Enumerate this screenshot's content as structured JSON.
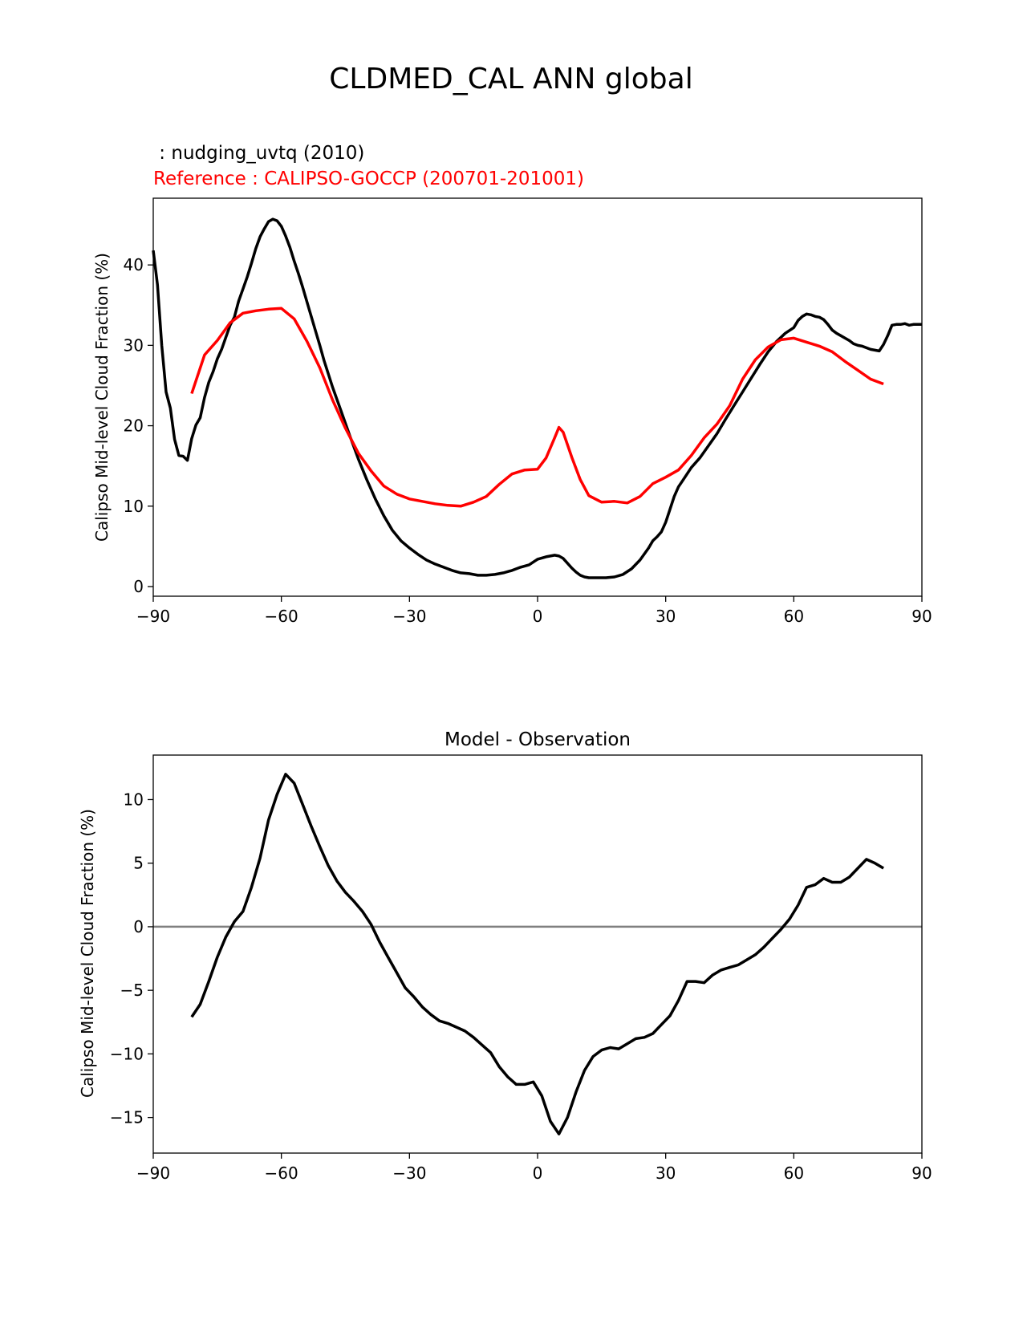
{
  "figure": {
    "title": "CLDMED_CAL ANN global"
  },
  "chart_data": [
    {
      "type": "line",
      "model_label": " : nudging_uvtq (2010)",
      "reference_label": "Reference : CALIPSO-GOCCP (200701-201001)",
      "title": "",
      "xlabel": "",
      "ylabel": "Calipso Mid-level Cloud Fraction (%)",
      "xlim": [
        -90,
        90
      ],
      "ylim": [
        -1.2,
        48.3
      ],
      "xticks": [
        -90,
        -60,
        -30,
        0,
        30,
        60,
        90
      ],
      "xtick_labels": [
        "−90",
        "−60",
        "−30",
        "0",
        "30",
        "60",
        "90"
      ],
      "yticks": [
        0,
        10,
        20,
        30,
        40
      ],
      "ytick_labels": [
        "0",
        "10",
        "20",
        "30",
        "40"
      ],
      "series": [
        {
          "name": "nudging_uvtq (2010)",
          "color": "#000000",
          "x": [
            -90,
            -89,
            -88,
            -87,
            -86,
            -85,
            -84,
            -83,
            -82,
            -81,
            -80,
            -79,
            -78,
            -77,
            -76,
            -75,
            -74,
            -73,
            -72,
            -71,
            -70,
            -69,
            -68,
            -67,
            -66,
            -65,
            -64,
            -63,
            -62,
            -61,
            -60,
            -59,
            -58,
            -57,
            -56,
            -55,
            -54,
            -53,
            -52,
            -51,
            -50,
            -48,
            -46,
            -44,
            -42,
            -40,
            -38,
            -36,
            -34,
            -32,
            -30,
            -28,
            -26,
            -24,
            -22,
            -20,
            -18,
            -16,
            -14,
            -12,
            -10,
            -8,
            -6,
            -4,
            -2,
            0,
            2,
            4,
            5,
            6,
            7,
            8,
            9,
            10,
            11,
            12,
            14,
            16,
            18,
            20,
            22,
            24,
            26,
            27,
            28,
            29,
            30,
            31,
            32,
            33,
            34,
            35,
            36,
            38,
            40,
            42,
            44,
            46,
            48,
            50,
            52,
            54,
            56,
            58,
            60,
            61,
            62,
            63,
            64,
            65,
            66,
            67,
            68,
            69,
            70,
            71,
            72,
            73,
            74,
            75,
            76,
            77,
            78,
            79,
            80,
            81,
            82,
            83,
            84,
            85,
            86,
            87,
            88,
            89,
            90
          ],
          "values": [
            41.8,
            37.5,
            30,
            24.2,
            22.2,
            18.3,
            16.3,
            16.2,
            15.7,
            18.4,
            20.1,
            21,
            23.5,
            25.4,
            26.7,
            28.3,
            29.5,
            31,
            32.5,
            33.5,
            35.5,
            37,
            38.5,
            40.2,
            42,
            43.5,
            44.5,
            45.4,
            45.7,
            45.5,
            44.8,
            43.6,
            42.2,
            40.5,
            38.9,
            37.2,
            35.4,
            33.6,
            31.8,
            30,
            28.1,
            24.8,
            21.8,
            18.8,
            15.9,
            13.3,
            10.9,
            8.8,
            7,
            5.7,
            4.8,
            4,
            3.3,
            2.8,
            2.4,
            2.0,
            1.7,
            1.6,
            1.4,
            1.4,
            1.5,
            1.7,
            2.0,
            2.4,
            2.7,
            3.4,
            3.7,
            3.9,
            3.8,
            3.5,
            2.9,
            2.3,
            1.8,
            1.4,
            1.2,
            1.1,
            1.1,
            1.1,
            1.2,
            1.5,
            2.2,
            3.3,
            4.8,
            5.7,
            6.2,
            6.8,
            8,
            9.6,
            11.2,
            12.4,
            13.2,
            14,
            14.8,
            16,
            17.5,
            19,
            20.8,
            22.5,
            24.2,
            25.9,
            27.6,
            29.2,
            30.5,
            31.5,
            32.2,
            33.1,
            33.6,
            33.9,
            33.8,
            33.6,
            33.5,
            33.2,
            32.6,
            31.9,
            31.5,
            31.2,
            30.9,
            30.6,
            30.2,
            30,
            29.9,
            29.7,
            29.5,
            29.4,
            29.3,
            30.1,
            31.2,
            32.5,
            32.6,
            32.6,
            32.7,
            32.5,
            32.6,
            32.6,
            32.6
          ]
        },
        {
          "name": "CALIPSO-GOCCP (200701-201001)",
          "color": "#ff0000",
          "x": [
            -81,
            -78,
            -75,
            -72,
            -69,
            -66,
            -63,
            -60,
            -57,
            -54,
            -51,
            -48,
            -45,
            -42,
            -39,
            -36,
            -33,
            -30,
            -27,
            -24,
            -21,
            -18,
            -15,
            -12,
            -9,
            -6,
            -3,
            0,
            2,
            4,
            5,
            6,
            8,
            10,
            12,
            15,
            18,
            21,
            24,
            27,
            30,
            33,
            36,
            39,
            42,
            45,
            48,
            51,
            54,
            57,
            60,
            63,
            66,
            69,
            72,
            75,
            78,
            81
          ],
          "values": [
            24,
            28.8,
            30.6,
            32.8,
            34,
            34.3,
            34.5,
            34.6,
            33.3,
            30.5,
            27.2,
            23.2,
            19.7,
            16.6,
            14.4,
            12.5,
            11.5,
            10.9,
            10.6,
            10.3,
            10.1,
            10.0,
            10.5,
            11.2,
            12.7,
            14,
            14.5,
            14.6,
            16,
            18.5,
            19.8,
            19.2,
            16.1,
            13.3,
            11.3,
            10.5,
            10.6,
            10.4,
            11.2,
            12.8,
            13.6,
            14.5,
            16.3,
            18.5,
            20.2,
            22.5,
            25.8,
            28.2,
            29.8,
            30.7,
            30.9,
            30.4,
            29.9,
            29.2,
            28,
            26.9,
            25.8,
            25.2
          ]
        }
      ]
    },
    {
      "type": "line",
      "title": "Model - Observation",
      "xlabel": "",
      "ylabel": "Calipso Mid-level Cloud Fraction (%)",
      "xlim": [
        -90,
        90
      ],
      "ylim": [
        -17.8,
        13.5
      ],
      "xticks": [
        -90,
        -60,
        -30,
        0,
        30,
        60,
        90
      ],
      "xtick_labels": [
        "−90",
        "−60",
        "−30",
        "0",
        "30",
        "60",
        "90"
      ],
      "yticks": [
        10,
        5,
        0,
        -5,
        -10,
        -15
      ],
      "ytick_labels": [
        "10",
        "5",
        "0",
        "−5",
        "−10",
        "−15"
      ],
      "zero_line_color": "#808080",
      "series": [
        {
          "name": "Model - Observation",
          "color": "#000000",
          "x": [
            -81,
            -79,
            -77,
            -75,
            -73,
            -71,
            -69,
            -67,
            -65,
            -63,
            -61,
            -59,
            -57,
            -55,
            -53,
            -51,
            -49,
            -47,
            -45,
            -43,
            -41,
            -39,
            -37,
            -35,
            -33,
            -31,
            -29,
            -27,
            -25,
            -23,
            -21,
            -19,
            -17,
            -15,
            -13,
            -11,
            -9,
            -7,
            -5,
            -3,
            -1,
            1,
            3,
            5,
            7,
            9,
            11,
            13,
            15,
            17,
            19,
            21,
            23,
            25,
            27,
            29,
            31,
            33,
            35,
            37,
            39,
            41,
            43,
            45,
            47,
            49,
            51,
            53,
            55,
            57,
            59,
            61,
            63,
            65,
            67,
            69,
            71,
            73,
            75,
            77,
            79,
            81
          ],
          "values": [
            -7.1,
            -6.1,
            -4.3,
            -2.4,
            -0.8,
            0.4,
            1.2,
            3.1,
            5.4,
            8.4,
            10.4,
            12.0,
            11.3,
            9.6,
            7.9,
            6.3,
            4.8,
            3.6,
            2.7,
            2.0,
            1.2,
            0.2,
            -1.2,
            -2.4,
            -3.6,
            -4.8,
            -5.5,
            -6.3,
            -6.9,
            -7.4,
            -7.6,
            -7.9,
            -8.2,
            -8.7,
            -9.3,
            -9.9,
            -11.0,
            -11.8,
            -12.4,
            -12.4,
            -12.2,
            -13.3,
            -15.3,
            -16.3,
            -15.0,
            -13.0,
            -11.3,
            -10.2,
            -9.7,
            -9.5,
            -9.6,
            -9.2,
            -8.8,
            -8.7,
            -8.4,
            -7.7,
            -7.0,
            -5.8,
            -4.3,
            -4.3,
            -4.4,
            -3.8,
            -3.4,
            -3.2,
            -3.0,
            -2.6,
            -2.2,
            -1.6,
            -0.9,
            -0.2,
            0.6,
            1.7,
            3.1,
            3.3,
            3.8,
            3.5,
            3.5,
            3.9,
            4.6,
            5.3,
            5.0,
            4.6
          ]
        }
      ]
    }
  ]
}
